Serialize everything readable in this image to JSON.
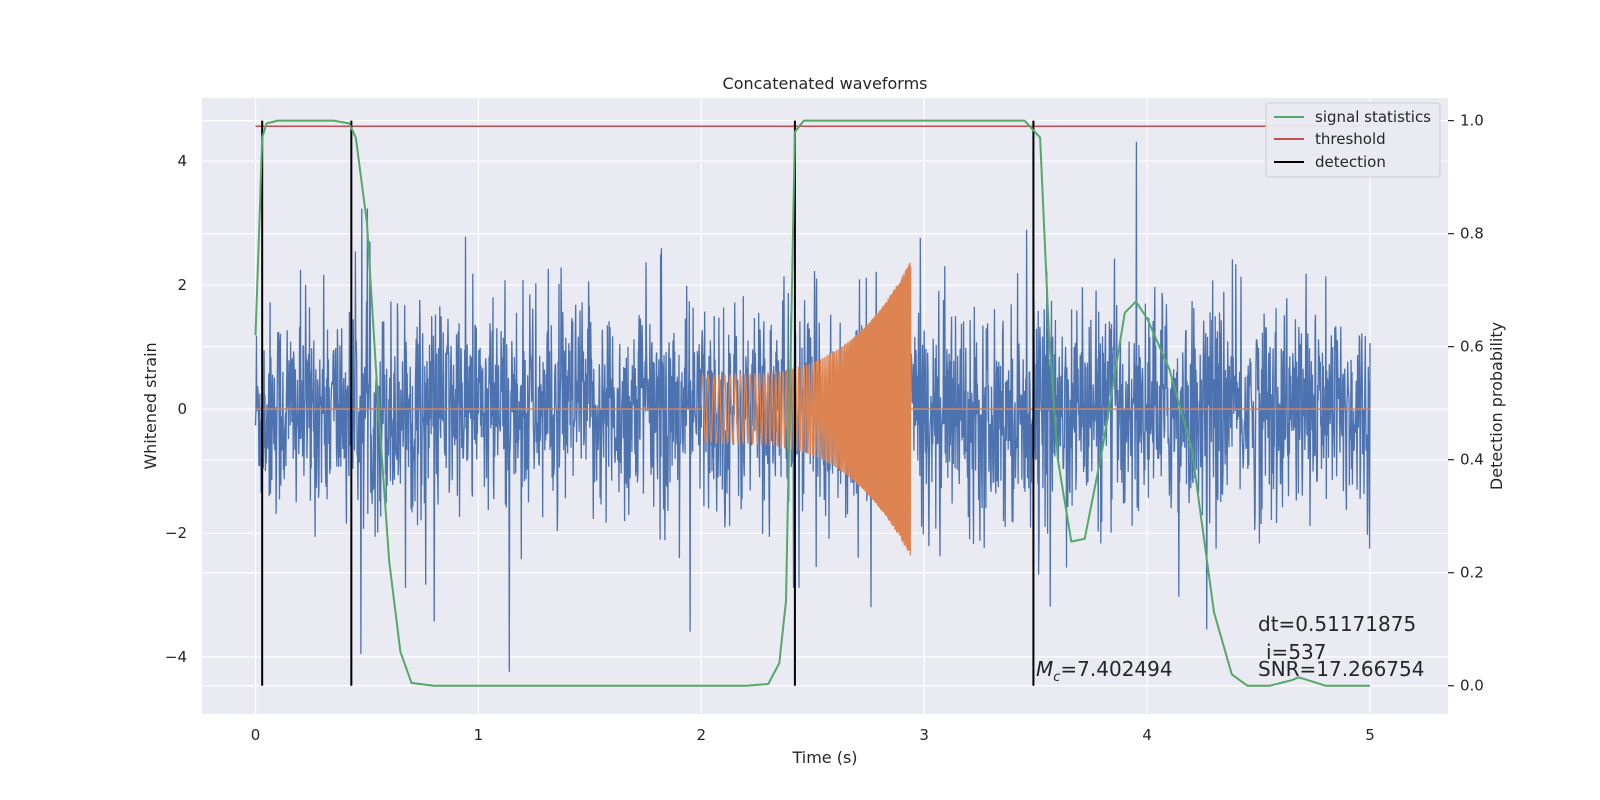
{
  "chart_data": {
    "type": "line",
    "title": "Concatenated waveforms",
    "xlabel": "Time (s)",
    "ylabel": "Whitened strain",
    "ylabel_right": "Detection probability",
    "xlim": [
      -0.24,
      5.35
    ],
    "ylim": [
      -4.92,
      5.02
    ],
    "ylim_right": [
      -0.05,
      1.04
    ],
    "xticks": [
      0,
      1,
      2,
      3,
      4,
      5
    ],
    "xtick_labels": [
      "0",
      "1",
      "2",
      "3",
      "4",
      "5"
    ],
    "yticks": [
      -4,
      -2,
      0,
      2,
      4
    ],
    "ytick_labels": [
      "−4",
      "−2",
      "0",
      "2",
      "4"
    ],
    "yticks_right": [
      0.0,
      0.2,
      0.4,
      0.6,
      0.8,
      1.0
    ],
    "ytick_labels_right": [
      "0.0",
      "0.2",
      "0.4",
      "0.6",
      "0.8",
      "1.0"
    ],
    "grid": true,
    "legend_position": "top-right",
    "series": [
      {
        "name": "whitened strain",
        "color": "#4c72b0",
        "axis": "left",
        "x_range": [
          0,
          5
        ],
        "approx_amplitude": 1.0
      },
      {
        "name": "injected waveform",
        "color": "#dd8452",
        "axis": "left",
        "x_range": [
          2.0,
          2.94
        ],
        "start_amplitude": 0.55,
        "end_amplitude": 2.4
      },
      {
        "name": "signal statistics",
        "color": "#55a868",
        "axis": "right",
        "x": [
          0.0,
          0.02,
          0.03,
          0.05,
          0.1,
          0.2,
          0.35,
          0.42,
          0.45,
          0.5,
          0.55,
          0.6,
          0.65,
          0.7,
          0.8,
          1.0,
          1.5,
          2.0,
          2.2,
          2.3,
          2.35,
          2.38,
          2.42,
          2.46,
          2.55,
          2.8,
          3.2,
          3.45,
          3.52,
          3.56,
          3.6,
          3.66,
          3.72,
          3.8,
          3.9,
          3.95,
          4.0,
          4.1,
          4.2,
          4.3,
          4.38,
          4.45,
          4.55,
          4.65,
          4.68,
          4.72,
          4.8,
          5.0
        ],
        "y": [
          0.62,
          0.85,
          0.97,
          0.995,
          1.0,
          1.0,
          1.0,
          0.995,
          0.97,
          0.82,
          0.5,
          0.22,
          0.06,
          0.005,
          0.0,
          0.0,
          0.0,
          0.0,
          0.0,
          0.003,
          0.04,
          0.15,
          0.98,
          1.0,
          1.0,
          1.0,
          1.0,
          1.0,
          0.97,
          0.62,
          0.4,
          0.255,
          0.26,
          0.42,
          0.66,
          0.68,
          0.65,
          0.56,
          0.42,
          0.13,
          0.02,
          0.0,
          0.0,
          0.01,
          0.015,
          0.01,
          0.0,
          0.0
        ]
      },
      {
        "name": "threshold",
        "color": "#c44e52",
        "axis": "right",
        "x": [
          0,
          5
        ],
        "y": [
          0.99,
          0.99
        ]
      },
      {
        "name": "detection",
        "color": "#000000",
        "axis": "right",
        "x_lines": [
          0.03,
          0.43,
          2.42,
          3.49
        ],
        "y_range": [
          0.0,
          1.0
        ]
      }
    ],
    "legend": [
      {
        "label": "signal statistics",
        "color": "#55a868"
      },
      {
        "label": "threshold",
        "color": "#c44e52"
      },
      {
        "label": "detection",
        "color": "#000000"
      }
    ],
    "annotations": {
      "mc_symbol": "M",
      "mc_sub": "c",
      "mc_value": "=7.402494",
      "dt": "dt=0.51171875",
      "i": "i=537",
      "snr": "SNR=17.266754"
    }
  }
}
